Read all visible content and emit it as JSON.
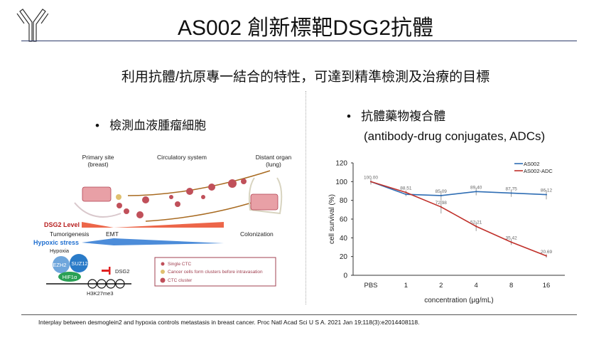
{
  "slide": {
    "title": "AS002 創新標靶DSG2抗體",
    "subtitle": "利用抗體/抗原專一結合的特性，可達到精準檢測及治療的目標",
    "left_bullet": "檢測血液腫瘤細胞",
    "right_bullet": "抗體藥物複合體",
    "right_bullet_sub": "(antibody-drug conjugates, ADCs)",
    "citation": "Interplay between desmoglein2 and hypoxia controls metastasis in breast cancer. Proc Natl Acad Sci U S A. 2021 Jan 19;118(3):e2014408118.",
    "logo_icon": "antibody-icon"
  },
  "diagram": {
    "primary_site": "Primary site",
    "primary_site_sub": "(breast)",
    "circulatory": "Circulatory system",
    "distant": "Distant organ",
    "distant_sub": "(lung)",
    "dsg2_level": "DSG2 Level",
    "tumorigenesis": "Tumorigenesis",
    "emt": "EMT",
    "colonization": "Colonization",
    "hypoxic_stress": "Hypoxic stress",
    "hypoxia": "Hypoxia",
    "ezh2": "EZH2",
    "suz12": "SUZ12",
    "hif1a": "HIF1α",
    "dsg2": "DSG2",
    "h3k27me3": "H3K27me3",
    "legend": [
      "Single CTC",
      "Cancer cells form clusters before intravasation",
      "CTC cluster"
    ],
    "colors": {
      "dsg2": "#e8401c",
      "hypoxic": "#1f6fd0",
      "cells": "#c0505a"
    }
  },
  "chart_data": {
    "type": "line",
    "categories": [
      "PBS",
      "1",
      "2",
      "4",
      "8",
      "16"
    ],
    "series": [
      {
        "name": "AS002",
        "color": "#2e6db4",
        "values": [
          100.0,
          86.43,
          85.09,
          89.4,
          87.75,
          86.12
        ],
        "labels": [
          "",
          "",
          "85.09",
          "89.40",
          "87.75",
          "86.12"
        ],
        "errors": [
          3,
          2,
          5,
          4,
          4,
          5
        ]
      },
      {
        "name": "AS002-ADC",
        "color": "#c0302a",
        "values": [
          100.0,
          88.51,
          72.98,
          52.21,
          35.42,
          20.69
        ],
        "labels": [
          "100.00",
          "88.51",
          "72.98",
          "52.21",
          "35.42",
          "20.69"
        ],
        "errors": [
          3,
          2,
          7,
          5,
          3,
          2
        ]
      }
    ],
    "xlabel": "concentration (μg/mL)",
    "ylabel": "cell survival (%)",
    "ylim": [
      0,
      120
    ],
    "yticks": [
      "0",
      "20",
      "40",
      "60",
      "80",
      "100",
      "120"
    ],
    "legend": "top-right",
    "grid": false
  }
}
